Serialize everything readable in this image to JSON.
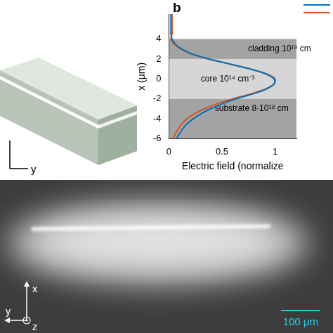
{
  "panel_label": "b",
  "schematic": {
    "axis_label": "y"
  },
  "chart_data": {
    "type": "line",
    "ylabel": "x (μm)",
    "xlabel": "Electric field (normalize",
    "xlim": [
      0,
      1.2
    ],
    "xticks": [
      0,
      0.5,
      1
    ],
    "ylim": [
      -6,
      6.5
    ],
    "yticks": [
      -6,
      -4,
      -2,
      0,
      2,
      4
    ],
    "grid": false,
    "y": [
      6.5,
      6,
      5.5,
      5,
      4.5,
      4,
      3.5,
      3,
      2.5,
      2,
      1.5,
      1,
      0.5,
      0,
      -0.5,
      -1,
      -1.5,
      -2,
      -2.5,
      -3,
      -3.5,
      -4,
      -4.5,
      -5,
      -5.5,
      -6
    ],
    "series": [
      {
        "color": "#0072bd",
        "values": [
          0.02,
          0.02,
          0.02,
          0.02,
          0.02,
          0.03,
          0.06,
          0.12,
          0.22,
          0.38,
          0.57,
          0.76,
          0.91,
          0.99,
          0.99,
          0.92,
          0.79,
          0.63,
          0.5,
          0.39,
          0.3,
          0.23,
          0.17,
          0.13,
          0.1,
          0.07
        ]
      },
      {
        "color": "#d95319",
        "values": [
          0.03,
          0.03,
          0.03,
          0.03,
          0.03,
          0.02,
          0.05,
          0.11,
          0.21,
          0.37,
          0.57,
          0.77,
          0.92,
          1.0,
          0.99,
          0.91,
          0.77,
          0.6,
          0.45,
          0.33,
          0.24,
          0.17,
          0.12,
          0.09,
          0.06,
          0.04
        ]
      }
    ],
    "regions": [
      {
        "label": "cladding 10¹⁹ cm",
        "from": 2,
        "to": 4,
        "color": "#a3a3a3"
      },
      {
        "label": "core 10¹⁴ cm⁻³",
        "from": -2,
        "to": 2,
        "color": "#d6d6d6"
      },
      {
        "label": "substrate 8·10¹⁸ cm",
        "from": -6,
        "to": -2,
        "color": "#a3a3a3"
      }
    ]
  },
  "image": {
    "scale_bar_label": "100 μm",
    "axis_labels": {
      "up": "x",
      "left": "y",
      "out": "z"
    }
  }
}
